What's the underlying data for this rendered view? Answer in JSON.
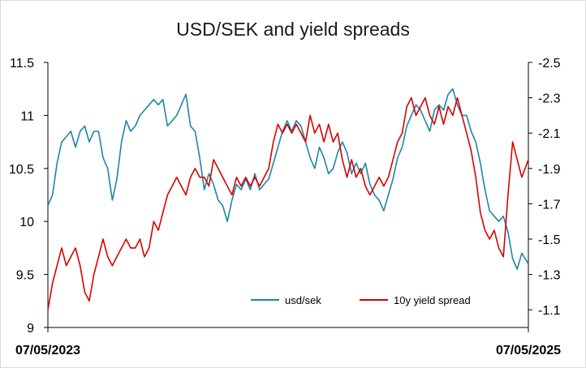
{
  "chart_data": {
    "type": "line",
    "title": "USD/SEK and yield spreads",
    "xlabel": "",
    "ylabel": "",
    "x_tick_labels": [
      "07/05/2023",
      "07/05/2025"
    ],
    "x_range": [
      "2023-05-07",
      "2025-05-07"
    ],
    "y_left": {
      "range": [
        9,
        11.5
      ],
      "ticks": [
        "9",
        "9.5",
        "10",
        "10.5",
        "11",
        "11.5"
      ]
    },
    "y_right": {
      "range": [
        -1.0,
        -2.5
      ],
      "inverted": true,
      "ticks": [
        "-1.1",
        "-1.3",
        "-1.5",
        "-1.7",
        "-1.9",
        "-2.1",
        "-2.3",
        "-2.5"
      ]
    },
    "legend": {
      "position": "bottom-center",
      "entries": [
        "usd/sek",
        "10y yield spread"
      ]
    },
    "grid": false,
    "series": [
      {
        "name": "usd/sek",
        "axis": "left",
        "color": "#1f85a8",
        "values": [
          [
            "2023-05-07",
            10.15
          ],
          [
            "2023-05-14",
            10.25
          ],
          [
            "2023-05-21",
            10.55
          ],
          [
            "2023-05-28",
            10.75
          ],
          [
            "2023-06-04",
            10.8
          ],
          [
            "2023-06-11",
            10.85
          ],
          [
            "2023-06-18",
            10.7
          ],
          [
            "2023-06-25",
            10.85
          ],
          [
            "2023-07-02",
            10.9
          ],
          [
            "2023-07-09",
            10.75
          ],
          [
            "2023-07-16",
            10.85
          ],
          [
            "2023-07-23",
            10.85
          ],
          [
            "2023-07-30",
            10.6
          ],
          [
            "2023-08-06",
            10.5
          ],
          [
            "2023-08-13",
            10.2
          ],
          [
            "2023-08-20",
            10.4
          ],
          [
            "2023-08-27",
            10.75
          ],
          [
            "2023-09-03",
            10.95
          ],
          [
            "2023-09-10",
            10.85
          ],
          [
            "2023-09-17",
            10.9
          ],
          [
            "2023-09-24",
            11.0
          ],
          [
            "2023-10-01",
            11.05
          ],
          [
            "2023-10-08",
            11.1
          ],
          [
            "2023-10-15",
            11.15
          ],
          [
            "2023-10-22",
            11.1
          ],
          [
            "2023-10-29",
            11.15
          ],
          [
            "2023-11-05",
            10.9
          ],
          [
            "2023-11-12",
            10.95
          ],
          [
            "2023-11-19",
            11.0
          ],
          [
            "2023-11-26",
            11.1
          ],
          [
            "2023-12-03",
            11.2
          ],
          [
            "2023-12-10",
            10.9
          ],
          [
            "2023-12-17",
            10.85
          ],
          [
            "2023-12-24",
            10.6
          ],
          [
            "2023-12-31",
            10.3
          ],
          [
            "2024-01-07",
            10.45
          ],
          [
            "2024-01-14",
            10.35
          ],
          [
            "2024-01-21",
            10.2
          ],
          [
            "2024-01-28",
            10.15
          ],
          [
            "2024-02-04",
            10.0
          ],
          [
            "2024-02-11",
            10.2
          ],
          [
            "2024-02-18",
            10.35
          ],
          [
            "2024-02-25",
            10.3
          ],
          [
            "2024-03-03",
            10.4
          ],
          [
            "2024-03-10",
            10.3
          ],
          [
            "2024-03-17",
            10.45
          ],
          [
            "2024-03-24",
            10.3
          ],
          [
            "2024-03-31",
            10.35
          ],
          [
            "2024-04-07",
            10.4
          ],
          [
            "2024-04-14",
            10.55
          ],
          [
            "2024-04-21",
            10.7
          ],
          [
            "2024-04-28",
            10.85
          ],
          [
            "2024-05-05",
            10.95
          ],
          [
            "2024-05-12",
            10.85
          ],
          [
            "2024-05-19",
            10.95
          ],
          [
            "2024-05-26",
            10.9
          ],
          [
            "2024-06-02",
            10.75
          ],
          [
            "2024-06-09",
            10.6
          ],
          [
            "2024-06-16",
            10.5
          ],
          [
            "2024-06-23",
            10.7
          ],
          [
            "2024-06-30",
            10.6
          ],
          [
            "2024-07-07",
            10.45
          ],
          [
            "2024-07-14",
            10.5
          ],
          [
            "2024-07-21",
            10.65
          ],
          [
            "2024-07-28",
            10.75
          ],
          [
            "2024-08-04",
            10.65
          ],
          [
            "2024-08-11",
            10.45
          ],
          [
            "2024-08-18",
            10.55
          ],
          [
            "2024-08-25",
            10.45
          ],
          [
            "2024-09-01",
            10.55
          ],
          [
            "2024-09-08",
            10.35
          ],
          [
            "2024-09-15",
            10.25
          ],
          [
            "2024-09-22",
            10.2
          ],
          [
            "2024-09-29",
            10.1
          ],
          [
            "2024-10-06",
            10.25
          ],
          [
            "2024-10-13",
            10.4
          ],
          [
            "2024-10-20",
            10.6
          ],
          [
            "2024-10-27",
            10.7
          ],
          [
            "2024-11-03",
            10.9
          ],
          [
            "2024-11-10",
            11.0
          ],
          [
            "2024-11-17",
            11.1
          ],
          [
            "2024-11-24",
            11.05
          ],
          [
            "2024-12-01",
            10.95
          ],
          [
            "2024-12-08",
            10.85
          ],
          [
            "2024-12-15",
            11.05
          ],
          [
            "2024-12-22",
            11.1
          ],
          [
            "2024-12-29",
            11.05
          ],
          [
            "2025-01-05",
            11.2
          ],
          [
            "2025-01-12",
            11.25
          ],
          [
            "2025-01-19",
            11.1
          ],
          [
            "2025-01-26",
            11.0
          ],
          [
            "2025-02-02",
            11.0
          ],
          [
            "2025-02-09",
            10.85
          ],
          [
            "2025-02-16",
            10.75
          ],
          [
            "2025-02-23",
            10.55
          ],
          [
            "2025-03-02",
            10.3
          ],
          [
            "2025-03-09",
            10.1
          ],
          [
            "2025-03-16",
            10.05
          ],
          [
            "2025-03-23",
            10.0
          ],
          [
            "2025-03-30",
            10.05
          ],
          [
            "2025-04-06",
            9.9
          ],
          [
            "2025-04-13",
            9.65
          ],
          [
            "2025-04-20",
            9.55
          ],
          [
            "2025-04-27",
            9.7
          ],
          [
            "2025-05-07",
            9.6
          ]
        ]
      },
      {
        "name": "10y yield spread",
        "axis": "right",
        "color": "#d90000",
        "values": [
          [
            "2023-05-07",
            -1.1
          ],
          [
            "2023-05-14",
            -1.25
          ],
          [
            "2023-05-21",
            -1.35
          ],
          [
            "2023-05-28",
            -1.45
          ],
          [
            "2023-06-04",
            -1.35
          ],
          [
            "2023-06-11",
            -1.4
          ],
          [
            "2023-06-18",
            -1.45
          ],
          [
            "2023-06-25",
            -1.35
          ],
          [
            "2023-07-02",
            -1.2
          ],
          [
            "2023-07-09",
            -1.15
          ],
          [
            "2023-07-16",
            -1.3
          ],
          [
            "2023-07-23",
            -1.4
          ],
          [
            "2023-07-30",
            -1.5
          ],
          [
            "2023-08-06",
            -1.4
          ],
          [
            "2023-08-13",
            -1.35
          ],
          [
            "2023-08-20",
            -1.4
          ],
          [
            "2023-08-27",
            -1.45
          ],
          [
            "2023-09-03",
            -1.5
          ],
          [
            "2023-09-10",
            -1.45
          ],
          [
            "2023-09-17",
            -1.45
          ],
          [
            "2023-09-24",
            -1.5
          ],
          [
            "2023-10-01",
            -1.4
          ],
          [
            "2023-10-08",
            -1.45
          ],
          [
            "2023-10-15",
            -1.6
          ],
          [
            "2023-10-22",
            -1.55
          ],
          [
            "2023-10-29",
            -1.65
          ],
          [
            "2023-11-05",
            -1.75
          ],
          [
            "2023-11-12",
            -1.8
          ],
          [
            "2023-11-19",
            -1.85
          ],
          [
            "2023-11-26",
            -1.8
          ],
          [
            "2023-12-03",
            -1.75
          ],
          [
            "2023-12-10",
            -1.85
          ],
          [
            "2023-12-17",
            -1.9
          ],
          [
            "2023-12-24",
            -1.85
          ],
          [
            "2023-12-31",
            -1.85
          ],
          [
            "2024-01-07",
            -1.8
          ],
          [
            "2024-01-14",
            -1.95
          ],
          [
            "2024-01-21",
            -1.9
          ],
          [
            "2024-01-28",
            -1.85
          ],
          [
            "2024-02-04",
            -1.8
          ],
          [
            "2024-02-11",
            -1.75
          ],
          [
            "2024-02-18",
            -1.85
          ],
          [
            "2024-02-25",
            -1.8
          ],
          [
            "2024-03-03",
            -1.85
          ],
          [
            "2024-03-10",
            -1.8
          ],
          [
            "2024-03-17",
            -1.85
          ],
          [
            "2024-03-24",
            -1.8
          ],
          [
            "2024-03-31",
            -1.85
          ],
          [
            "2024-04-07",
            -1.9
          ],
          [
            "2024-04-14",
            -2.05
          ],
          [
            "2024-04-21",
            -2.15
          ],
          [
            "2024-04-28",
            -2.1
          ],
          [
            "2024-05-05",
            -2.15
          ],
          [
            "2024-05-12",
            -2.1
          ],
          [
            "2024-05-19",
            -2.15
          ],
          [
            "2024-05-26",
            -2.1
          ],
          [
            "2024-06-02",
            -2.05
          ],
          [
            "2024-06-09",
            -2.2
          ],
          [
            "2024-06-16",
            -2.1
          ],
          [
            "2024-06-23",
            -2.15
          ],
          [
            "2024-06-30",
            -2.05
          ],
          [
            "2024-07-07",
            -2.15
          ],
          [
            "2024-07-14",
            -2.05
          ],
          [
            "2024-07-21",
            -2.1
          ],
          [
            "2024-07-28",
            -1.95
          ],
          [
            "2024-08-04",
            -1.85
          ],
          [
            "2024-08-11",
            -1.95
          ],
          [
            "2024-08-18",
            -1.85
          ],
          [
            "2024-08-25",
            -1.9
          ],
          [
            "2024-09-01",
            -1.8
          ],
          [
            "2024-09-08",
            -1.75
          ],
          [
            "2024-09-15",
            -1.8
          ],
          [
            "2024-09-22",
            -1.85
          ],
          [
            "2024-09-29",
            -1.8
          ],
          [
            "2024-10-06",
            -1.85
          ],
          [
            "2024-10-13",
            -1.95
          ],
          [
            "2024-10-20",
            -2.05
          ],
          [
            "2024-10-27",
            -2.1
          ],
          [
            "2024-11-03",
            -2.25
          ],
          [
            "2024-11-10",
            -2.3
          ],
          [
            "2024-11-17",
            -2.2
          ],
          [
            "2024-11-24",
            -2.25
          ],
          [
            "2024-12-01",
            -2.3
          ],
          [
            "2024-12-08",
            -2.2
          ],
          [
            "2024-12-15",
            -2.15
          ],
          [
            "2024-12-22",
            -2.25
          ],
          [
            "2024-12-29",
            -2.15
          ],
          [
            "2025-01-05",
            -2.25
          ],
          [
            "2025-01-12",
            -2.2
          ],
          [
            "2025-01-19",
            -2.3
          ],
          [
            "2025-01-26",
            -2.2
          ],
          [
            "2025-02-02",
            -2.1
          ],
          [
            "2025-02-09",
            -2.0
          ],
          [
            "2025-02-16",
            -1.85
          ],
          [
            "2025-02-23",
            -1.65
          ],
          [
            "2025-03-02",
            -1.55
          ],
          [
            "2025-03-09",
            -1.5
          ],
          [
            "2025-03-16",
            -1.55
          ],
          [
            "2025-03-23",
            -1.45
          ],
          [
            "2025-03-30",
            -1.4
          ],
          [
            "2025-04-06",
            -1.75
          ],
          [
            "2025-04-13",
            -2.05
          ],
          [
            "2025-04-20",
            -1.95
          ],
          [
            "2025-04-27",
            -1.85
          ],
          [
            "2025-05-07",
            -1.95
          ]
        ]
      }
    ]
  }
}
